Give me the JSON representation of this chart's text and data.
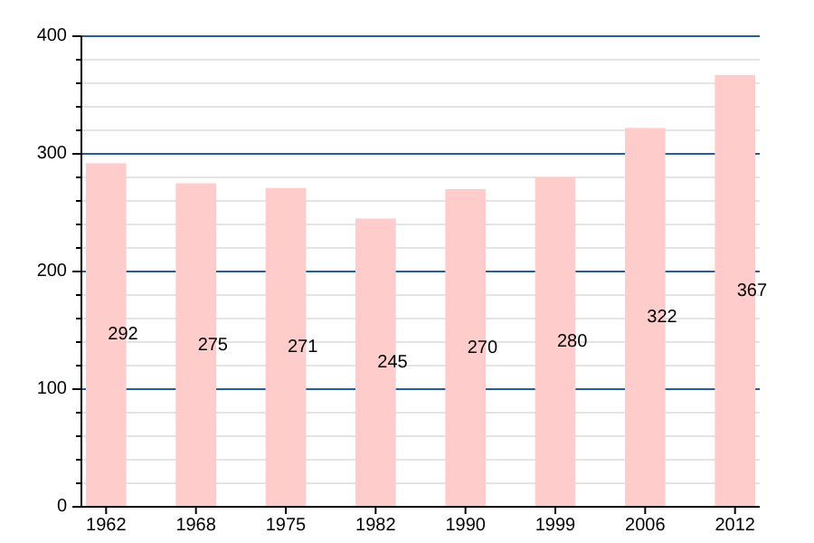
{
  "chart_data": {
    "type": "bar",
    "categories": [
      "1962",
      "1968",
      "1975",
      "1982",
      "1990",
      "1999",
      "2006",
      "2012"
    ],
    "values": [
      292,
      275,
      271,
      245,
      270,
      280,
      322,
      367
    ],
    "color": "#ffcccc",
    "data_labels": true,
    "grid": "y",
    "ylim": [
      0,
      400
    ],
    "yticks": [
      0,
      {
        "value": 20,
        "label": null
      },
      {
        "value": 40,
        "label": null
      },
      {
        "value": 60,
        "label": null
      },
      {
        "value": 80,
        "label": null
      },
      100,
      {
        "value": 120,
        "label": null
      },
      {
        "value": 140,
        "label": null
      },
      {
        "value": 160,
        "label": null
      },
      {
        "value": 180,
        "label": null
      },
      200,
      {
        "value": 220,
        "label": null
      },
      {
        "value": 240,
        "label": null
      },
      {
        "value": 260,
        "label": null
      },
      {
        "value": 280,
        "label": null
      },
      300,
      {
        "value": 320,
        "label": null
      },
      {
        "value": 340,
        "label": null
      },
      {
        "value": 360,
        "label": null
      },
      {
        "value": 380,
        "label": null
      },
      400
    ]
  }
}
